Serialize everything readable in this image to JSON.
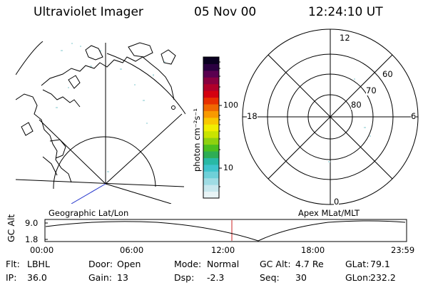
{
  "header": {
    "instrument": "Ultraviolet Imager",
    "date": "05 Nov 00",
    "time": "12:24:10 UT"
  },
  "colorbar": {
    "unit_label": "photon cm⁻²s⁻¹",
    "ticks": [
      "100",
      "10"
    ],
    "colors": [
      "#e8f4f6",
      "#c8e8ee",
      "#9fdce4",
      "#6fd0d8",
      "#3fc4cc",
      "#29b9a5",
      "#2ead55",
      "#4cbf1f",
      "#8fd10f",
      "#c9e400",
      "#f0ee00",
      "#f8c800",
      "#f89a00",
      "#f06800",
      "#e83000",
      "#d40010",
      "#b0002a",
      "#880040",
      "#5a0050",
      "#2a0040",
      "#0a0020"
    ]
  },
  "geo_panel": {
    "label": "Geographic Lat/Lon"
  },
  "polar_panel": {
    "label": "Apex MLat/MLT",
    "mlt_labels": {
      "top": "12",
      "left": "18",
      "right": "6",
      "bottom": "0"
    },
    "lat_labels": [
      "60",
      "70",
      "80"
    ]
  },
  "timeline": {
    "ylabel": "GC Alt",
    "yticks": [
      "9.0",
      "1.8"
    ],
    "xticks": [
      "00:00",
      "06:00",
      "12:00",
      "18:00",
      "23:59"
    ],
    "current_time_fraction": 0.5168
  },
  "status": [
    [
      {
        "key": "Flt:",
        "value": "LBHL"
      },
      {
        "key": "Door:",
        "value": "Open"
      },
      {
        "key": "Mode:",
        "value": "Normal"
      },
      {
        "key": "GC Alt:",
        "value": "4.7 Re"
      },
      {
        "key": "GLat:",
        "value": "79.1"
      }
    ],
    [
      {
        "key": "IP:",
        "value": "36.0"
      },
      {
        "key": "Gain:",
        "value": "13"
      },
      {
        "key": "Dsp:",
        "value": "-2.3"
      },
      {
        "key": "Seq:",
        "value": "30"
      },
      {
        "key": "GLon:",
        "value": "232.2"
      }
    ]
  ]
}
